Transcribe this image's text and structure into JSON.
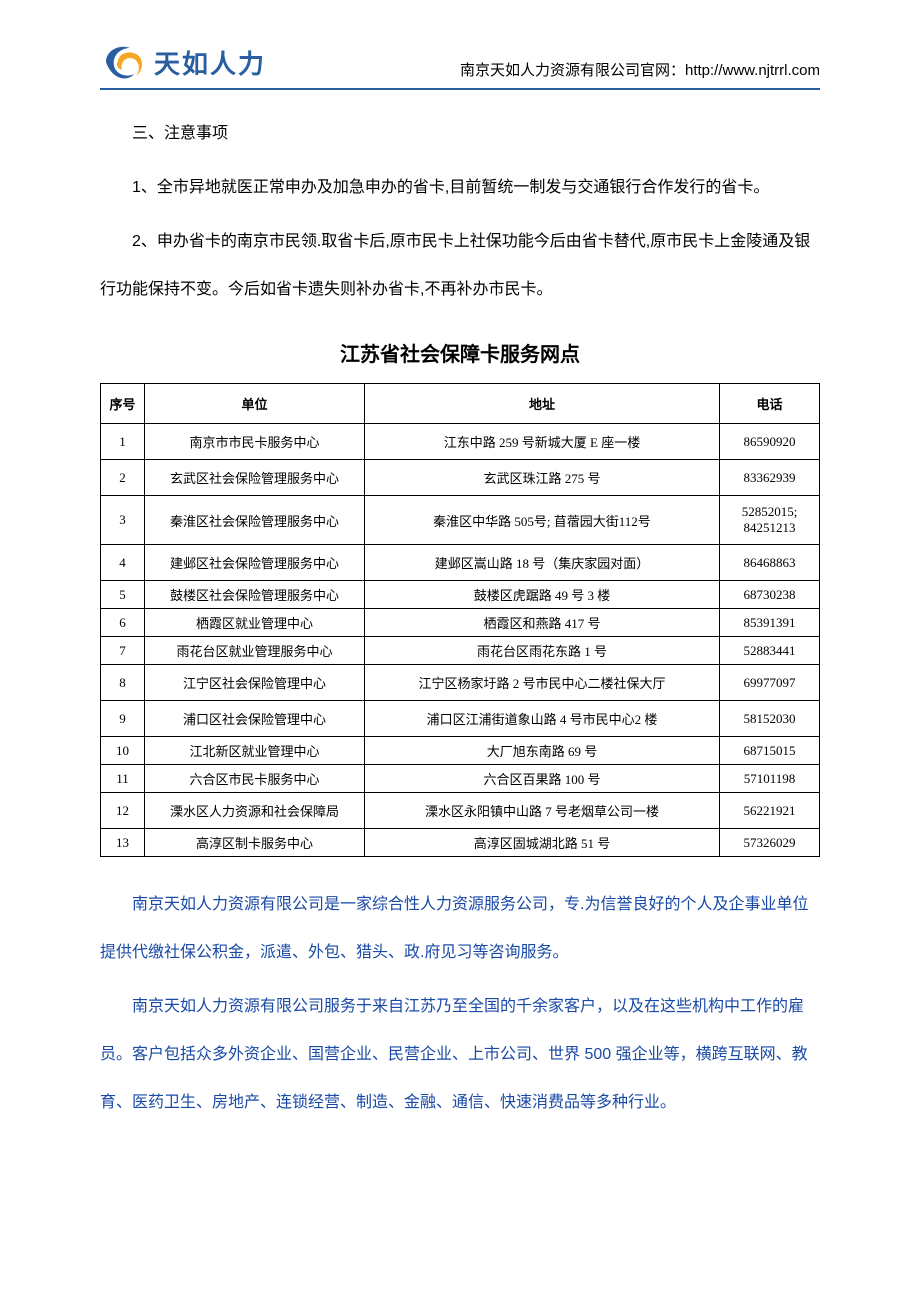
{
  "header": {
    "logo_text": "天如人力",
    "url_line": "南京天如人力资源有限公司官网：http://www.njtrrl.com"
  },
  "section_heading": "三、注意事项",
  "para1": "1、全市异地就医正常申办及加急申办的省卡,目前暂统一制发与交通银行合作发行的省卡。",
  "para2": "2、申办省卡的南京市民领.取省卡后,原市民卡上社保功能今后由省卡替代,原市民卡上金陵通及银行功能保持不变。今后如省卡遗失则补办省卡,不再补办市民卡。",
  "table_title": "江苏省社会保障卡服务网点",
  "columns": {
    "seq": "序号",
    "unit": "单位",
    "addr": "地址",
    "tel": "电话"
  },
  "rows": [
    {
      "seq": "1",
      "unit": "南京市市民卡服务中心",
      "addr": "江东中路 259 号新城大厦 E 座一楼",
      "tel": "86590920",
      "tall": true
    },
    {
      "seq": "2",
      "unit": "玄武区社会保险管理服务中心",
      "addr": "玄武区珠江路 275 号",
      "tel": "83362939",
      "tall": true
    },
    {
      "seq": "3",
      "unit": "秦淮区社会保险管理服务中心",
      "addr": "秦淮区中华路 505号; 苜蓿园大街112号",
      "tel": "52852015; 84251213",
      "tall": true
    },
    {
      "seq": "4",
      "unit": "建邺区社会保险管理服务中心",
      "addr": "建邺区嵩山路 18 号（集庆家园对面）",
      "tel": "86468863",
      "tall": true
    },
    {
      "seq": "5",
      "unit": "鼓楼区社会保险管理服务中心",
      "addr": "鼓楼区虎踞路 49 号 3 楼",
      "tel": "68730238"
    },
    {
      "seq": "6",
      "unit": "栖霞区就业管理中心",
      "addr": "栖霞区和燕路 417 号",
      "tel": "85391391"
    },
    {
      "seq": "7",
      "unit": "雨花台区就业管理服务中心",
      "addr": "雨花台区雨花东路 1 号",
      "tel": "52883441"
    },
    {
      "seq": "8",
      "unit": "江宁区社会保险管理中心",
      "addr": "江宁区杨家圩路 2 号市民中心二楼社保大厅",
      "tel": "69977097",
      "tall": true
    },
    {
      "seq": "9",
      "unit": "浦口区社会保险管理中心",
      "addr": "浦口区江浦街道象山路 4 号市民中心2 楼",
      "tel": "58152030",
      "tall": true
    },
    {
      "seq": "10",
      "unit": "江北新区就业管理中心",
      "addr": "大厂旭东南路 69 号",
      "tel": "68715015"
    },
    {
      "seq": "11",
      "unit": "六合区市民卡服务中心",
      "addr": "六合区百果路 100 号",
      "tel": "57101198"
    },
    {
      "seq": "12",
      "unit": "溧水区人力资源和社会保障局",
      "addr": "溧水区永阳镇中山路 7 号老烟草公司一楼",
      "tel": "56221921",
      "tall": true
    },
    {
      "seq": "13",
      "unit": "高淳区制卡服务中心",
      "addr": "高淳区固城湖北路 51 号",
      "tel": "57326029"
    }
  ],
  "blue_para1": "南京天如人力资源有限公司是一家综合性人力资源服务公司，专.为信誉良好的个人及企事业单位提供代缴社保公积金，派遣、外包、猎头、政.府见习等咨询服务。",
  "blue_para2": "南京天如人力资源有限公司服务于来自江苏乃至全国的千余家客户，以及在这些机构中工作的雇员。客户包括众多外资企业、国营企业、民营企业、上市公司、世界 500 强企业等，横跨互联网、教育、医药卫生、房地产、连锁经营、制造、金融、通信、快速消费品等多种行业。",
  "colors": {
    "brand_blue": "#2a5ea0",
    "link_blue": "#1a4aa6",
    "swirl_orange": "#f5a623",
    "swirl_blue": "#2a5ea0"
  }
}
